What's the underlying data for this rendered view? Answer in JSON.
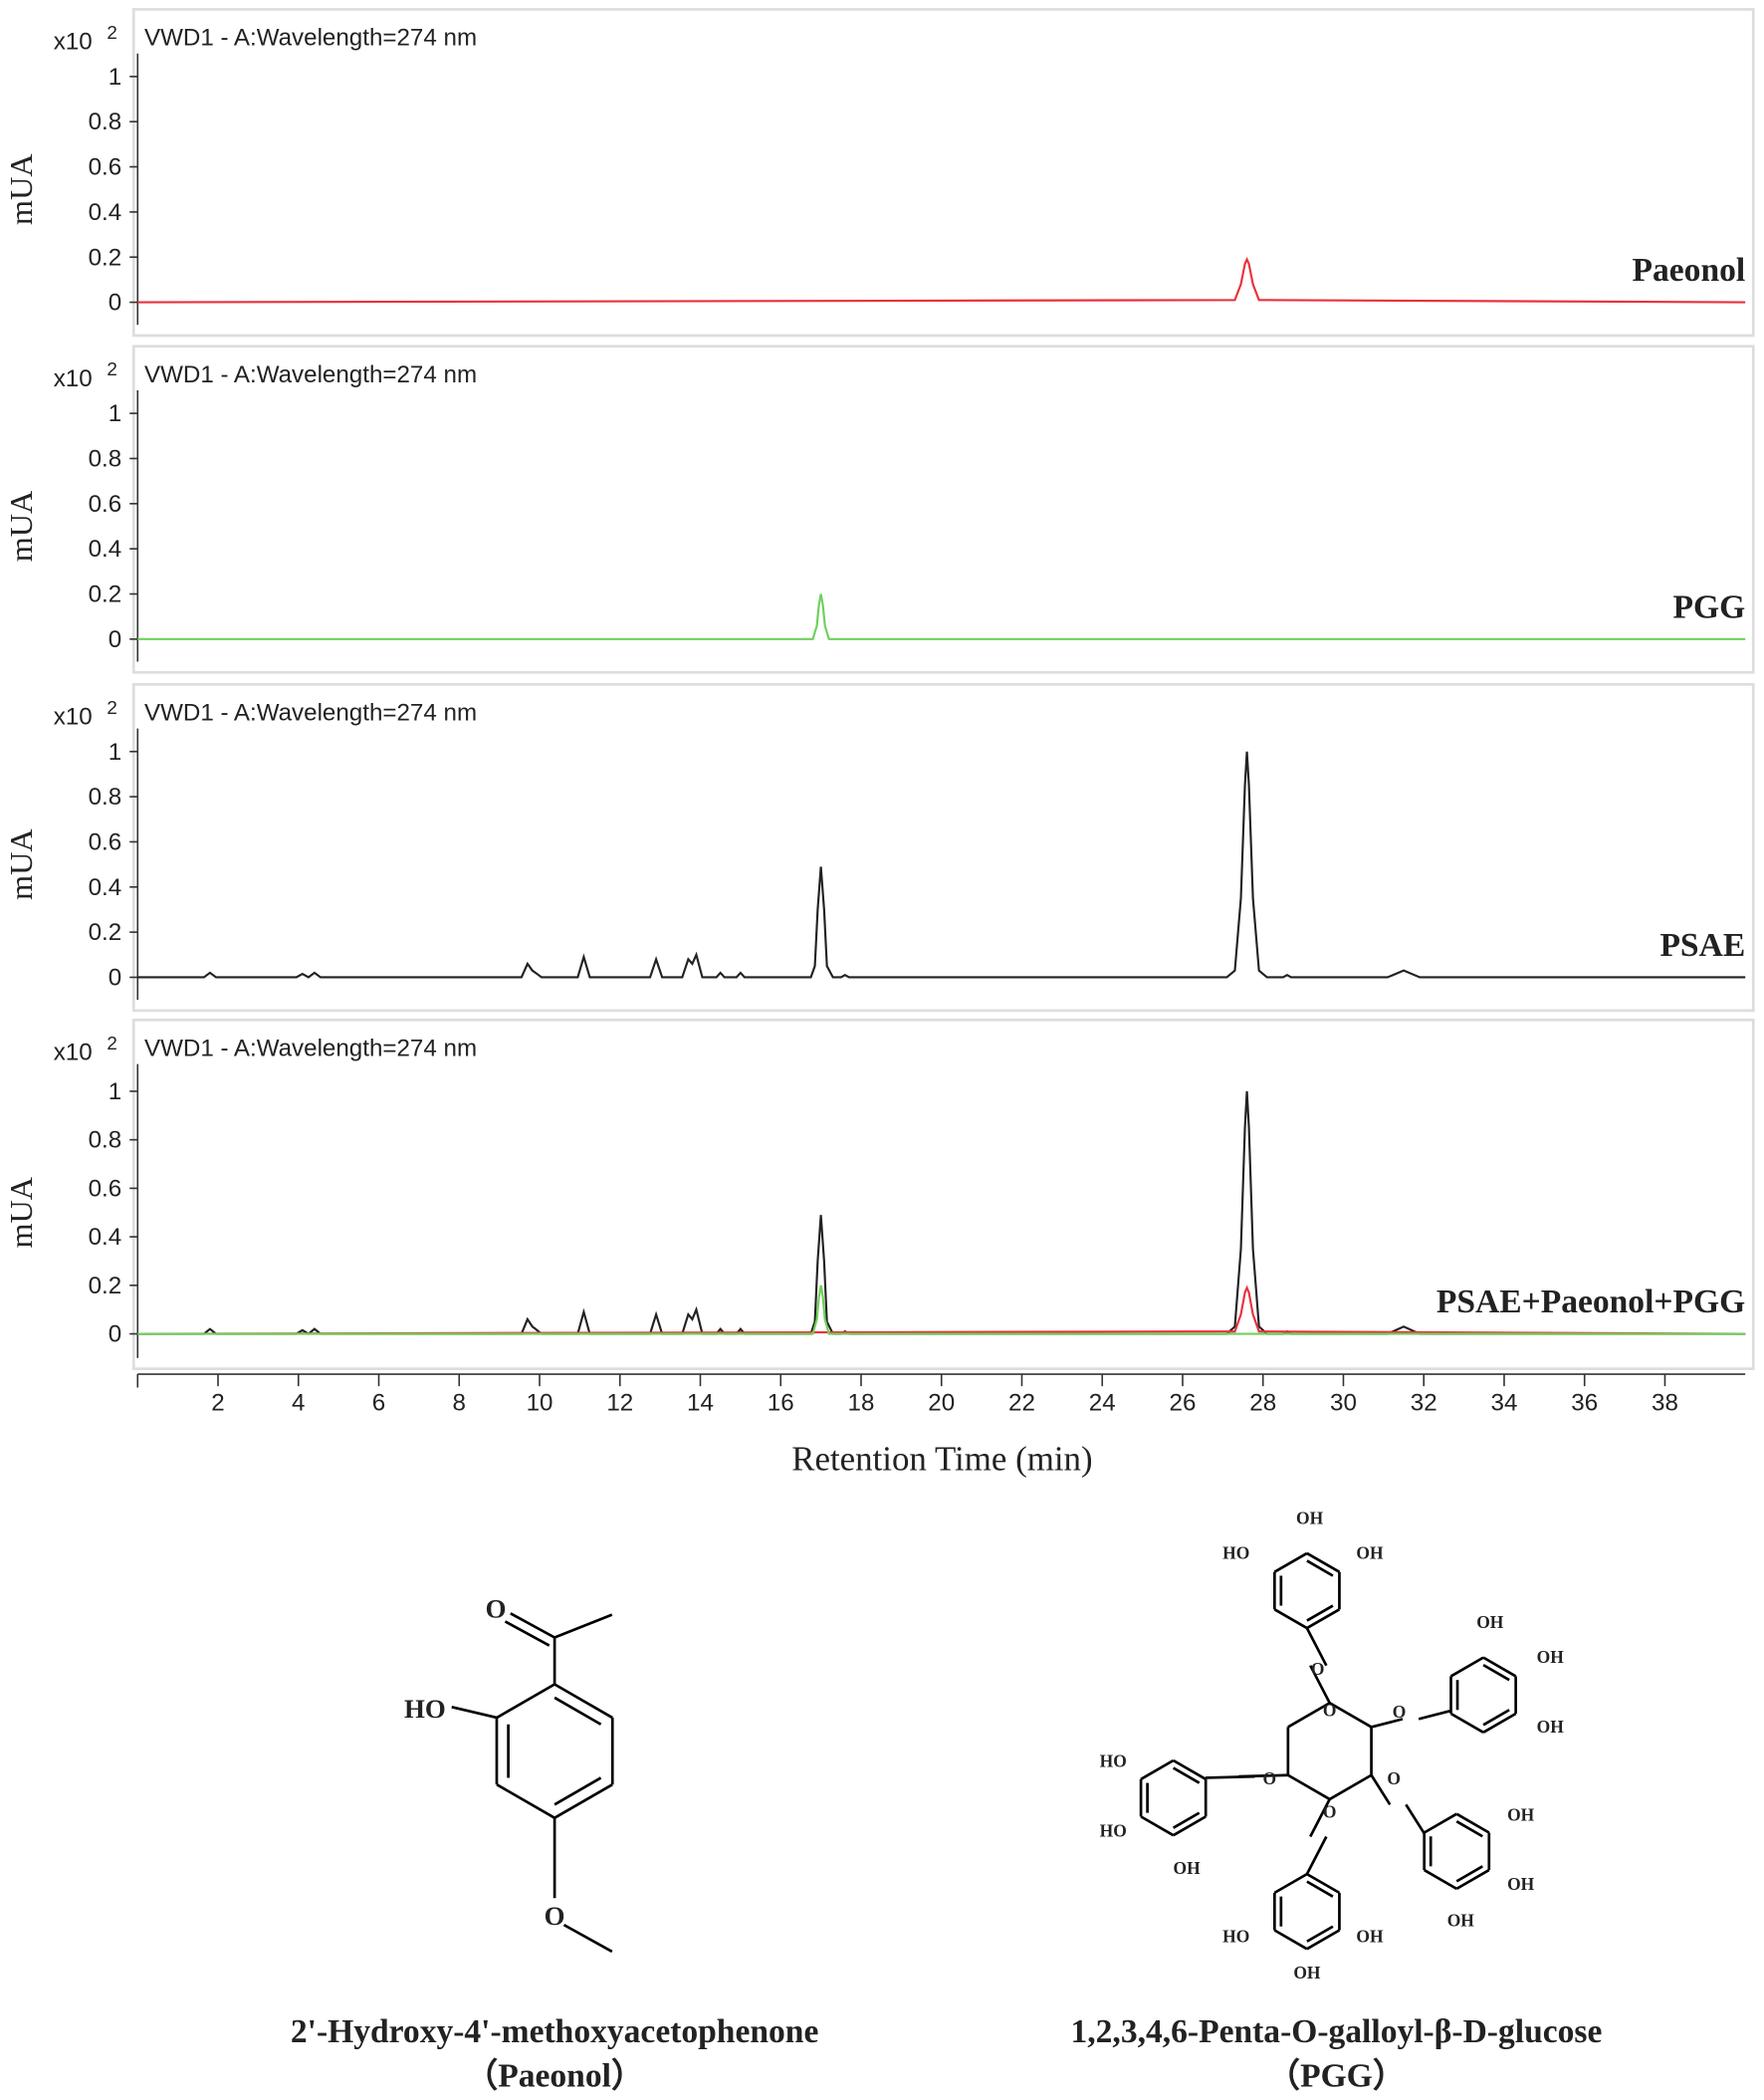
{
  "chart_data": [
    {
      "type": "line",
      "title": "VWD1 - A:Wavelength=274 nm",
      "multiplier": "x10",
      "multiplier_exponent": "2",
      "ylabel": "mUA",
      "label": "Paeonol",
      "xlim": [
        0,
        40
      ],
      "ylim": [
        -0.1,
        1.25
      ],
      "yticks": [
        0,
        0.2,
        0.4,
        0.6,
        0.8,
        1
      ],
      "series": [
        {
          "color": "#e8323c",
          "x": [
            0,
            27.3,
            27.45,
            27.55,
            27.6,
            27.65,
            27.75,
            27.9,
            40
          ],
          "values": [
            0,
            0.01,
            0.08,
            0.17,
            0.19,
            0.17,
            0.08,
            0.01,
            0
          ]
        }
      ]
    },
    {
      "type": "line",
      "title": "VWD1 - A:Wavelength=274 nm",
      "multiplier": "x10",
      "multiplier_exponent": "2",
      "ylabel": "mUA",
      "label": "PGG",
      "xlim": [
        0,
        40
      ],
      "ylim": [
        -0.1,
        1.25
      ],
      "yticks": [
        0,
        0.2,
        0.4,
        0.6,
        0.8,
        1
      ],
      "series": [
        {
          "color": "#6fd05a",
          "x": [
            0,
            16.8,
            16.9,
            16.95,
            17.0,
            17.05,
            17.1,
            17.2,
            40
          ],
          "values": [
            0,
            0,
            0.06,
            0.15,
            0.2,
            0.15,
            0.06,
            0,
            0
          ]
        }
      ]
    },
    {
      "type": "line",
      "title": "VWD1 - A:Wavelength=274 nm",
      "multiplier": "x10",
      "multiplier_exponent": "2",
      "ylabel": "mUA",
      "label": "PSAE",
      "xlim": [
        0,
        40
      ],
      "ylim": [
        -0.1,
        1.25
      ],
      "yticks": [
        0,
        0.2,
        0.4,
        0.6,
        0.8,
        1
      ],
      "series": [
        {
          "color": "#222222",
          "x": [
            0,
            1.65,
            1.8,
            1.95,
            3.95,
            4.1,
            4.25,
            4.4,
            4.55,
            9.55,
            9.7,
            9.82,
            9.9,
            10.05,
            10.95,
            11.1,
            11.25,
            12.75,
            12.9,
            13.05,
            13.55,
            13.7,
            13.8,
            13.9,
            14.05,
            14.4,
            14.5,
            14.6,
            14.9,
            15.0,
            15.1,
            16.75,
            16.85,
            16.92,
            17.0,
            17.08,
            17.15,
            17.3,
            17.5,
            17.6,
            17.7,
            27.1,
            27.3,
            27.45,
            27.55,
            27.6,
            27.65,
            27.75,
            27.9,
            28.1,
            28.5,
            28.6,
            28.7,
            31.1,
            31.5,
            31.9,
            40
          ],
          "values": [
            0,
            0,
            0.02,
            0,
            0,
            0.015,
            0,
            0.02,
            0,
            0,
            0.06,
            0.03,
            0.02,
            0,
            0,
            0.09,
            0,
            0,
            0.08,
            0,
            0,
            0.08,
            0.06,
            0.1,
            0,
            0,
            0.02,
            0,
            0,
            0.02,
            0,
            0,
            0.05,
            0.3,
            0.49,
            0.3,
            0.05,
            0,
            0,
            0.01,
            0,
            0,
            0.03,
            0.35,
            0.85,
            1.0,
            0.85,
            0.35,
            0.03,
            0,
            0,
            0.01,
            0,
            0,
            0.03,
            0,
            0
          ]
        }
      ]
    },
    {
      "type": "line",
      "title": "VWD1 - A:Wavelength=274 nm",
      "multiplier": "x10",
      "multiplier_exponent": "2",
      "ylabel": "mUA",
      "label": "PSAE+Paeonol+PGG",
      "xlim": [
        0,
        40
      ],
      "ylim": [
        -0.1,
        1.25
      ],
      "yticks": [
        0,
        0.2,
        0.4,
        0.6,
        0.8,
        1
      ],
      "xticks": [
        2,
        4,
        6,
        8,
        10,
        12,
        14,
        16,
        18,
        20,
        22,
        24,
        26,
        28,
        30,
        32,
        34,
        36,
        38
      ],
      "xlabel": "Retention Time (min)",
      "series": [
        {
          "color": "#222222",
          "x": [
            0,
            1.65,
            1.8,
            1.95,
            3.95,
            4.1,
            4.25,
            4.4,
            4.55,
            9.55,
            9.7,
            9.82,
            9.9,
            10.05,
            10.95,
            11.1,
            11.25,
            12.75,
            12.9,
            13.05,
            13.55,
            13.7,
            13.8,
            13.9,
            14.05,
            14.4,
            14.5,
            14.6,
            14.9,
            15.0,
            15.1,
            16.75,
            16.85,
            16.92,
            17.0,
            17.08,
            17.15,
            17.3,
            17.5,
            17.6,
            17.7,
            27.1,
            27.3,
            27.45,
            27.55,
            27.6,
            27.65,
            27.75,
            27.9,
            28.1,
            28.5,
            28.6,
            28.7,
            31.1,
            31.5,
            31.9,
            40
          ],
          "values": [
            0,
            0,
            0.02,
            0,
            0,
            0.015,
            0,
            0.02,
            0,
            0,
            0.06,
            0.03,
            0.02,
            0,
            0,
            0.09,
            0,
            0,
            0.08,
            0,
            0,
            0.08,
            0.06,
            0.1,
            0,
            0,
            0.02,
            0,
            0,
            0.02,
            0,
            0,
            0.05,
            0.3,
            0.49,
            0.3,
            0.05,
            0,
            0,
            0.01,
            0,
            0,
            0.03,
            0.35,
            0.85,
            1.0,
            0.85,
            0.35,
            0.03,
            0,
            0,
            0.01,
            0,
            0,
            0.03,
            0,
            0
          ]
        },
        {
          "color": "#e8323c",
          "x": [
            0,
            27.3,
            27.45,
            27.55,
            27.6,
            27.65,
            27.75,
            27.9,
            40
          ],
          "values": [
            0,
            0.01,
            0.08,
            0.17,
            0.19,
            0.17,
            0.08,
            0.01,
            0
          ]
        },
        {
          "color": "#6fd05a",
          "x": [
            0,
            16.8,
            16.9,
            16.95,
            17.0,
            17.05,
            17.1,
            17.2,
            40
          ],
          "values": [
            0,
            0,
            0.06,
            0.15,
            0.2,
            0.15,
            0.06,
            0,
            0
          ]
        }
      ]
    }
  ],
  "structures": [
    {
      "name": "2'-Hydroxy-4'-methoxyacetophenone",
      "abbr": "（Paeonol）",
      "atoms": [
        "O",
        "HO",
        "O"
      ]
    },
    {
      "name": "1,2,3,4,6-Penta-O-galloyl-β-D-glucose",
      "abbr": "（PGG）",
      "atoms": [
        "OH",
        "HO",
        "OH",
        "OH",
        "OH",
        "OH",
        "HO",
        "HO",
        "OH",
        "OH",
        "OH",
        "OH",
        "HO",
        "OH",
        "OH",
        "O",
        "O",
        "O",
        "O",
        "O",
        "O"
      ]
    }
  ]
}
